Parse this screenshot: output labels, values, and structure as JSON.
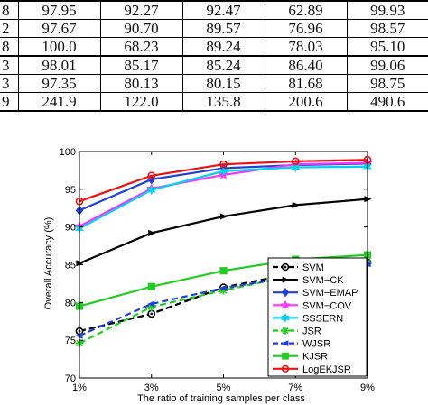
{
  "table": {
    "rows": [
      [
        "8",
        "97.95",
        "92.27",
        "92.47",
        "62.89",
        "99.93"
      ],
      [
        "2",
        "97.67",
        "90.70",
        "89.57",
        "76.96",
        "98.57"
      ],
      [
        "8",
        "100.0",
        "68.23",
        "89.24",
        "78.03",
        "95.10"
      ],
      [
        "3",
        "98.01",
        "85.17",
        "85.24",
        "86.40",
        "99.06"
      ],
      [
        "3",
        "97.35",
        "80.13",
        "80.15",
        "81.68",
        "98.75"
      ],
      [
        "9",
        "241.9",
        "122.0",
        "135.8",
        "200.6",
        "490.6"
      ]
    ]
  },
  "chart_data": {
    "type": "line",
    "xlabel": "The ratio of training samples per class",
    "ylabel": "Overall Accuracy (%)",
    "x": [
      1,
      3,
      5,
      7,
      9
    ],
    "xticks": [
      "1%",
      "3%",
      "5%",
      "7%",
      "9%"
    ],
    "xlim": [
      1,
      9
    ],
    "ylim": [
      70,
      100
    ],
    "yticks": [
      "70",
      "75",
      "80",
      "85",
      "90",
      "95",
      "100"
    ],
    "legend_position": "bottom-right",
    "series": [
      {
        "name": "SVM",
        "color": "#000000",
        "dash": "dashed",
        "marker": "circle-dot",
        "values": [
          76.2,
          78.5,
          82.0,
          83.9,
          85.3
        ]
      },
      {
        "name": "SVM−CK",
        "color": "#000000",
        "dash": "solid",
        "marker": "triangle-right",
        "values": [
          85.2,
          89.2,
          91.4,
          92.9,
          93.7
        ]
      },
      {
        "name": "SVM−EMAP",
        "color": "#1f3fd6",
        "dash": "solid",
        "marker": "diamond",
        "values": [
          92.2,
          96.3,
          97.8,
          98.2,
          98.4
        ]
      },
      {
        "name": "SVM−COV",
        "color": "#ff33ff",
        "dash": "solid",
        "marker": "star",
        "values": [
          90.1,
          95.1,
          96.9,
          98.3,
          98.5
        ]
      },
      {
        "name": "SSSERN",
        "color": "#00d2ee",
        "dash": "solid",
        "marker": "hexagram",
        "values": [
          89.8,
          94.9,
          97.4,
          97.9,
          98.0
        ]
      },
      {
        "name": "JSR",
        "color": "#22cc22",
        "dash": "dashed",
        "marker": "asterisk",
        "values": [
          74.6,
          79.4,
          81.6,
          83.6,
          85.2
        ]
      },
      {
        "name": "WJSR",
        "color": "#1f3fd6",
        "dash": "dashed",
        "marker": "triangle-left",
        "values": [
          75.6,
          79.8,
          81.9,
          83.5,
          85.1
        ]
      },
      {
        "name": "KJSR",
        "color": "#22cc22",
        "dash": "solid",
        "marker": "square",
        "values": [
          79.5,
          82.1,
          84.2,
          85.7,
          86.3
        ]
      },
      {
        "name": "LogEKJSR",
        "color": "#ee1111",
        "dash": "solid",
        "marker": "circle",
        "values": [
          93.4,
          96.8,
          98.3,
          98.7,
          98.9
        ]
      }
    ]
  }
}
